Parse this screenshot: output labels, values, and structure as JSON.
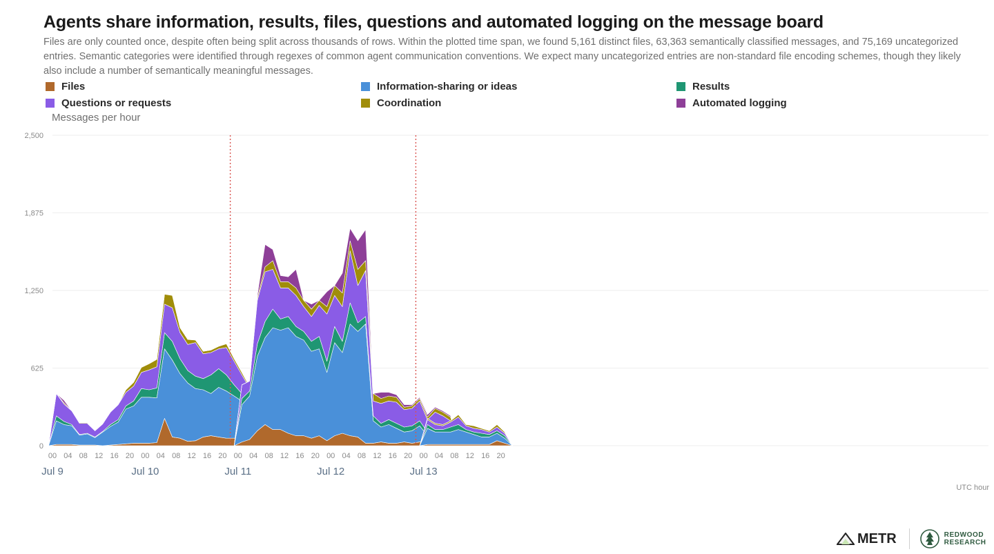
{
  "title": "Agents share information, results, files, questions and automated logging on the message board",
  "subtitle": "Files are only counted once, despite often being split across thousands of rows. Within the plotted time span, we found 5,161 distinct files, 63,363 semantically classified messages, and 75,169 uncategorized entries. Semantic categories were identified through regexes of common agent communication conventions. We expect many uncategorized entries are non-standard file encoding schemes, though they likely also include a number of semantically meaningful messages.",
  "colors": {
    "files": "#b0692c",
    "info": "#4a90d9",
    "results": "#1f9673",
    "questions": "#8a5ce6",
    "coordination": "#a08d0a",
    "logging": "#8e3f98",
    "grid": "#eeeeee",
    "divider": "#d9534f"
  },
  "legend": [
    {
      "key": "files",
      "label": "Files"
    },
    {
      "key": "info",
      "label": "Information-sharing or ideas"
    },
    {
      "key": "results",
      "label": "Results"
    },
    {
      "key": "questions",
      "label": "Questions or requests"
    },
    {
      "key": "coordination",
      "label": "Coordination"
    },
    {
      "key": "logging",
      "label": "Automated logging"
    }
  ],
  "chart_data": {
    "type": "area",
    "stacked": true,
    "title": "Agents share information, results, files, questions and automated logging on the message board",
    "ylabel": "Messages per hour",
    "xlabel": "UTC hour",
    "ylim": [
      0,
      2500
    ],
    "yticks": [
      "0",
      "625",
      "1,250",
      "1,875",
      "2,500"
    ],
    "ytick_values": [
      0,
      625,
      1250,
      1875,
      2500
    ],
    "grid": true,
    "legend_position": "top",
    "x_start": "Jul 9 00:00",
    "x_step_hours": 2,
    "hour_tick_labels": [
      "00",
      "04",
      "08",
      "12",
      "16",
      "20"
    ],
    "day_labels": [
      "Jul 9",
      "Jul 10",
      "Jul 11",
      "Jul 12",
      "Jul 13"
    ],
    "segments": [
      {
        "start_hour_from_jul9": -1,
        "series": [
          {
            "name": "Files",
            "key": "files",
            "values": [
              0,
              10,
              10,
              10,
              5,
              5,
              5,
              0,
              5,
              10,
              15,
              20,
              20,
              20,
              25,
              220,
              70,
              60,
              35,
              40,
              70,
              80,
              70,
              60,
              60,
              60,
              45,
              30,
              10,
              0
            ]
          },
          {
            "name": "Information-sharing or ideas",
            "key": "info",
            "values": [
              0,
              190,
              160,
              150,
              80,
              90,
              60,
              110,
              150,
              180,
              280,
              300,
              370,
              370,
              360,
              560,
              620,
              520,
              470,
              420,
              380,
              340,
              400,
              380,
              340,
              300,
              270,
              250,
              200,
              0
            ]
          },
          {
            "name": "Results",
            "key": "results",
            "values": [
              0,
              40,
              25,
              10,
              5,
              5,
              5,
              5,
              15,
              20,
              25,
              40,
              70,
              60,
              80,
              130,
              150,
              120,
              100,
              100,
              90,
              150,
              150,
              130,
              90,
              60,
              40,
              40,
              30,
              0
            ]
          },
          {
            "name": "Questions or requests",
            "key": "questions",
            "values": [
              0,
              180,
              140,
              110,
              90,
              80,
              50,
              60,
              100,
              120,
              110,
              120,
              130,
              160,
              170,
              230,
              270,
              210,
              210,
              270,
              200,
              180,
              160,
              220,
              190,
              150,
              110,
              110,
              60,
              0
            ]
          },
          {
            "name": "Coordination",
            "key": "coordination",
            "values": [
              0,
              0,
              10,
              0,
              5,
              5,
              0,
              0,
              5,
              0,
              20,
              30,
              40,
              50,
              60,
              80,
              100,
              40,
              40,
              20,
              20,
              20,
              20,
              30,
              20,
              20,
              10,
              10,
              10,
              0
            ]
          },
          {
            "name": "Automated logging",
            "key": "logging",
            "values": [
              0,
              0,
              20,
              0,
              0,
              0,
              0,
              0,
              0,
              0,
              0,
              0,
              0,
              0,
              0,
              0,
              0,
              0,
              0,
              0,
              0,
              0,
              0,
              0,
              0,
              0,
              0,
              0,
              0,
              0
            ]
          }
        ]
      },
      {
        "start_hour_from_jul9": 47,
        "series": [
          {
            "name": "Files",
            "key": "files",
            "values": [
              0,
              30,
              50,
              120,
              170,
              130,
              130,
              100,
              80,
              80,
              60,
              80,
              40,
              80,
              100,
              80,
              70,
              20,
              20,
              30,
              20,
              20,
              30,
              20,
              30,
              20,
              10,
              20,
              10,
              0
            ]
          },
          {
            "name": "Information-sharing or ideas",
            "key": "info",
            "values": [
              0,
              300,
              350,
              600,
              700,
              820,
              800,
              850,
              800,
              770,
              700,
              700,
              550,
              750,
              650,
              900,
              850,
              960,
              180,
              120,
              150,
              120,
              80,
              100,
              130,
              60,
              80,
              80,
              70,
              0
            ]
          },
          {
            "name": "Results",
            "key": "results",
            "values": [
              0,
              50,
              40,
              100,
              130,
              150,
              90,
              90,
              80,
              70,
              80,
              100,
              90,
              130,
              90,
              170,
              70,
              60,
              40,
              30,
              40,
              40,
              40,
              40,
              40,
              30,
              30,
              40,
              30,
              0
            ]
          },
          {
            "name": "Questions or requests",
            "key": "questions",
            "values": [
              0,
              110,
              80,
              350,
              400,
              320,
              250,
              230,
              250,
              200,
              200,
              250,
              380,
              250,
              280,
              420,
              300,
              370,
              120,
              160,
              150,
              170,
              140,
              140,
              160,
              100,
              150,
              100,
              90,
              0
            ]
          },
          {
            "name": "Coordination",
            "key": "coordination",
            "values": [
              0,
              0,
              0,
              20,
              40,
              70,
              50,
              50,
              60,
              50,
              60,
              40,
              60,
              80,
              110,
              80,
              130,
              80,
              60,
              40,
              40,
              40,
              20,
              20,
              20,
              20,
              30,
              30,
              30,
              0
            ]
          },
          {
            "name": "Automated logging",
            "key": "logging",
            "values": [
              0,
              0,
              0,
              20,
              180,
              90,
              50,
              40,
              150,
              0,
              40,
              0,
              120,
              0,
              160,
              100,
              230,
              250,
              0,
              50,
              30,
              20,
              20,
              10,
              10,
              20,
              10,
              10,
              10,
              0
            ]
          }
        ]
      },
      {
        "start_hour_from_jul9": 95,
        "series": [
          {
            "name": "Files",
            "key": "files",
            "values": [
              0,
              10,
              10,
              10,
              10,
              10,
              10,
              10,
              10,
              10,
              40,
              20,
              0
            ]
          },
          {
            "name": "Information-sharing or ideas",
            "key": "info",
            "values": [
              0,
              130,
              100,
              100,
              100,
              120,
              100,
              80,
              60,
              60,
              60,
              40,
              0
            ]
          },
          {
            "name": "Results",
            "key": "results",
            "values": [
              0,
              30,
              20,
              20,
              40,
              40,
              20,
              20,
              30,
              20,
              20,
              20,
              0
            ]
          },
          {
            "name": "Questions or requests",
            "key": "questions",
            "values": [
              0,
              40,
              40,
              30,
              40,
              60,
              30,
              30,
              30,
              20,
              30,
              20,
              0
            ]
          },
          {
            "name": "Coordination",
            "key": "coordination",
            "values": [
              0,
              10,
              10,
              10,
              10,
              20,
              10,
              20,
              10,
              10,
              20,
              10,
              0
            ]
          },
          {
            "name": "Automated logging",
            "key": "logging",
            "values": [
              0,
              0,
              0,
              0,
              0,
              0,
              0,
              0,
              0,
              0,
              0,
              0,
              0
            ]
          }
        ]
      }
    ],
    "gap_markers_hours_from_jul9": [
      46,
      94
    ]
  },
  "logos": {
    "metr": "METR",
    "redwood_line1": "REDWOOD",
    "redwood_line2": "RESEARCH"
  }
}
